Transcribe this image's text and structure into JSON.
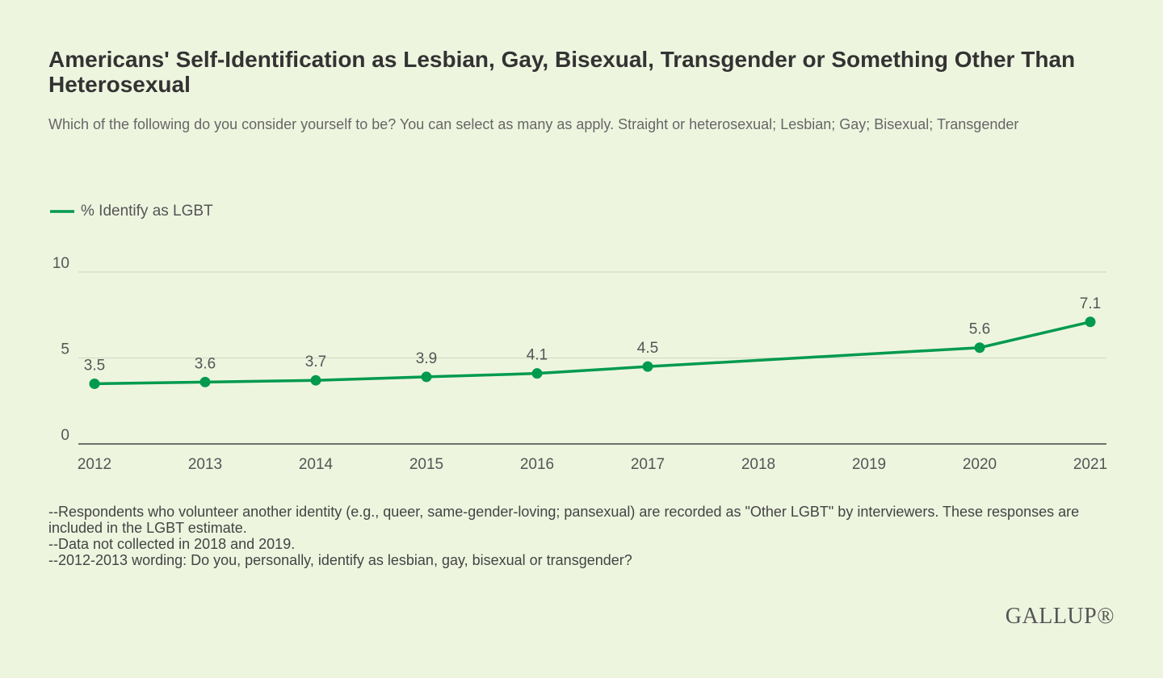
{
  "chart_data": {
    "type": "line",
    "title": "Americans' Self-Identification as Lesbian, Gay, Bisexual, Transgender or Something Other Than Heterosexual",
    "subtitle": "Which of the following do you consider yourself to be? You can select as many as apply. Straight or heterosexual; Lesbian; Gay; Bisexual; Transgender",
    "x": [
      2012,
      2013,
      2014,
      2015,
      2016,
      2017,
      2020,
      2021
    ],
    "series": [
      {
        "name": "% Identify as LGBT",
        "color": "#009a4e",
        "values": [
          3.5,
          3.6,
          3.7,
          3.9,
          4.1,
          4.5,
          5.6,
          7.1
        ]
      }
    ],
    "xlim": [
      2012,
      2021
    ],
    "xticks": [
      2012,
      2013,
      2014,
      2015,
      2016,
      2017,
      2018,
      2019,
      2020,
      2021
    ],
    "ylim": [
      0,
      10
    ],
    "yticks": [
      0,
      5,
      10
    ],
    "grid": true,
    "legend": "top-left",
    "notes": [
      "--Respondents who volunteer another identity (e.g., queer, same-gender-loving; pansexual) are recorded as \"Other LGBT\" by interviewers. These responses are included in the LGBT estimate.",
      "--Data not collected in 2018 and 2019.",
      "--2012-2013 wording: Do you, personally, identify as lesbian, gay, bisexual or transgender?"
    ],
    "brand": "GALLUP®"
  }
}
